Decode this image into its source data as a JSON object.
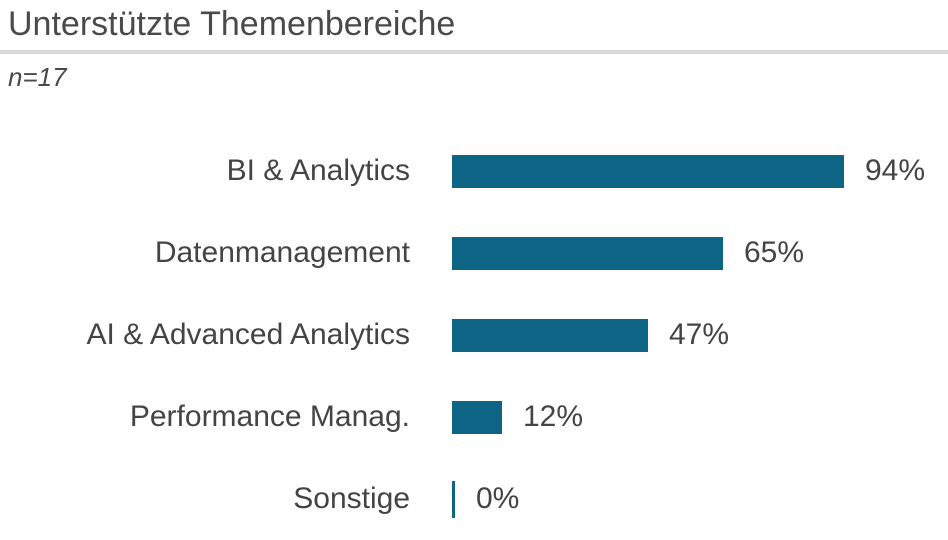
{
  "header": {
    "title": "Unterstützte Themenbereiche",
    "subtitle": "n=17"
  },
  "chart_data": {
    "type": "bar",
    "orientation": "horizontal",
    "title": "Unterstützte Themenbereiche",
    "subtitle": "n=17",
    "categories": [
      "BI & Analytics",
      "Datenmanagement",
      "AI & Advanced Analytics",
      "Performance Manag.",
      "Sonstige"
    ],
    "values": [
      94,
      65,
      47,
      12,
      0
    ],
    "value_labels": [
      "94%",
      "65%",
      "47%",
      "12%",
      "0%"
    ],
    "unit": "%",
    "xlim": [
      0,
      100
    ],
    "grid": false,
    "legend": false,
    "bar_color": "#0e6484",
    "text_color": "#444444",
    "divider_color": "#d8d8d8",
    "background_color": "#ffffff"
  }
}
